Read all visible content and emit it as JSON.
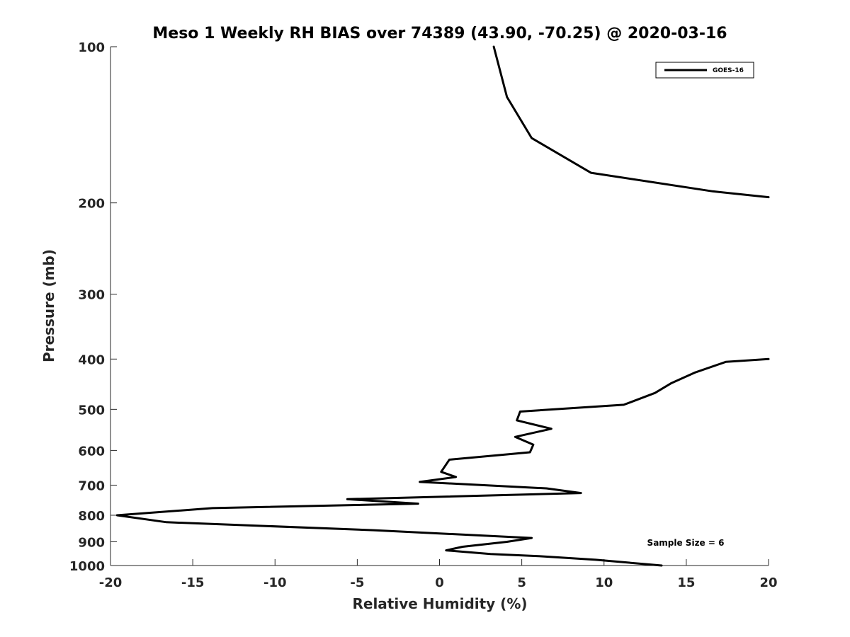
{
  "chart_data": {
    "type": "line",
    "title": "Meso 1 Weekly RH BIAS over 74389 (43.90, -70.25) @ 2020-03-16",
    "xlabel": "Relative Humidity (%)",
    "ylabel": "Pressure (mb)",
    "xlim": [
      -20,
      20
    ],
    "ylim": [
      1000,
      100
    ],
    "yscale": "log",
    "y_reversed": true,
    "x_ticks": [
      -20,
      -15,
      -10,
      -5,
      0,
      5,
      10,
      15,
      20
    ],
    "x_tick_labels": [
      "-20",
      "-15",
      "-10",
      "-5",
      "0",
      "5",
      "10",
      "15",
      "20"
    ],
    "y_ticks": [
      100,
      200,
      300,
      400,
      500,
      600,
      700,
      800,
      900,
      1000
    ],
    "y_tick_labels": [
      "100",
      "200",
      "300",
      "400",
      "500",
      "600",
      "700",
      "800",
      "900",
      "1000"
    ],
    "grid": false,
    "legend_position": "top-right",
    "annotation": "Sample Size = 6",
    "series": [
      {
        "name": "GOES-16",
        "color": "#000000",
        "segments": [
          {
            "x": [
              3.3,
              4.1,
              5.6,
              9.2,
              16.6,
              20.0
            ],
            "y": [
              100,
              125,
              150,
              175,
              190,
              195
            ]
          },
          {
            "x": [
              20.0,
              17.4,
              15.5,
              14.1,
              13.1,
              11.2,
              4.9,
              4.7,
              6.8,
              4.6,
              5.7,
              5.5,
              0.6,
              0.1,
              1.0,
              -1.2,
              6.5,
              8.6,
              -5.6,
              -1.3,
              -13.8,
              -19.6,
              -16.6,
              -4.0,
              5.6,
              4.1,
              1.4,
              0.4,
              3.1,
              6.2,
              9.5,
              13.5
            ],
            "y": [
              400,
              405,
              425,
              445,
              465,
              490,
              505,
              525,
              545,
              565,
              585,
              605,
              625,
              660,
              675,
              690,
              710,
              725,
              745,
              760,
              775,
              800,
              825,
              855,
              885,
              900,
              920,
              935,
              950,
              960,
              975,
              1000
            ]
          }
        ]
      }
    ]
  }
}
